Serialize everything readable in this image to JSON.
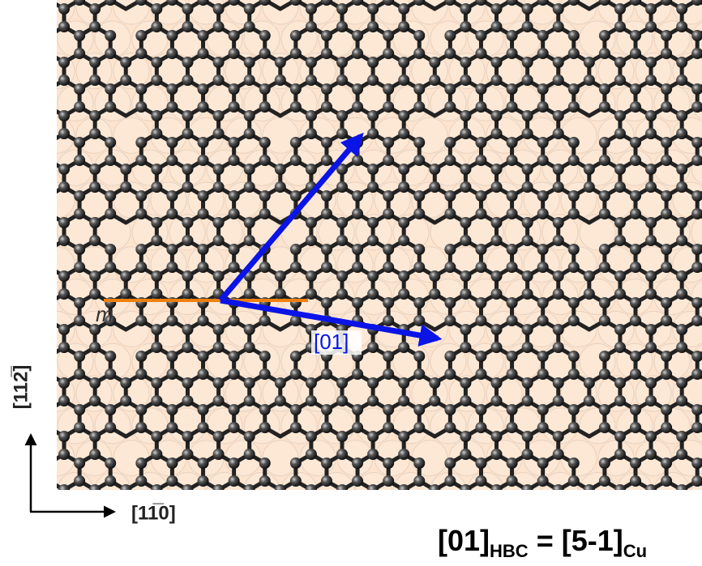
{
  "labels": {
    "mirror": "m",
    "arrow_label": "[01]",
    "vertical_axis": "[112̅]",
    "horizontal_axis": "[11̅0]"
  },
  "relation": {
    "lhs": "[01]",
    "lhs_sub": "HBC",
    "rhs": " = [5-1]",
    "rhs_sub": "Cu"
  }
}
